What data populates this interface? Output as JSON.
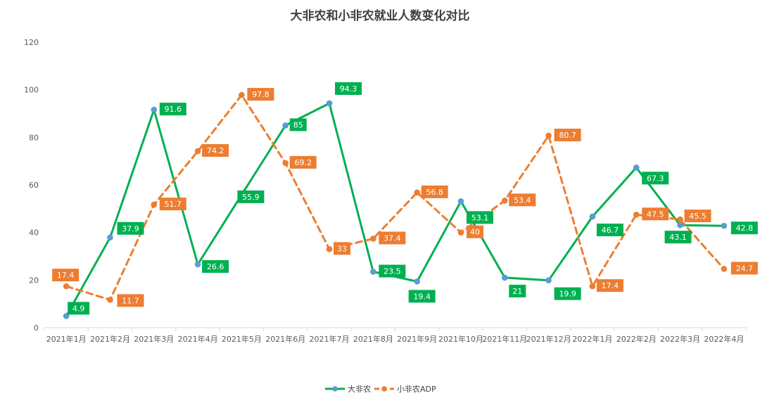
{
  "chart_data": {
    "type": "line",
    "title": "大非农和小非农就业人数变化对比",
    "xlabel": "",
    "ylabel": "",
    "categories": [
      "2021年1月",
      "2021年2月",
      "2021年3月",
      "2021年4月",
      "2021年5月",
      "2021年6月",
      "2021年7月",
      "2021年8月",
      "2021年9月",
      "2021年10月",
      "2021年11月",
      "2021年12月",
      "2022年1月",
      "2022年2月",
      "2022年3月",
      "2022年4月"
    ],
    "ylim": [
      0,
      120
    ],
    "yticks": [
      "0",
      "20",
      "40",
      "60",
      "80",
      "100",
      "120"
    ],
    "grid": false,
    "legend_position": "bottom",
    "series": [
      {
        "name": "大非农",
        "color": "#00b050",
        "marker_color": "#5b9bd5",
        "line_style": "solid",
        "values": [
          4.9,
          37.9,
          91.6,
          26.6,
          55.9,
          85,
          94.3,
          23.5,
          19.4,
          53.1,
          21,
          19.9,
          46.7,
          67.3,
          43.1,
          42.8
        ],
        "labels": [
          "4.9",
          "37.9",
          "91.6",
          "26.6",
          "55.9",
          "85",
          "94.3",
          "23.5",
          "19.4",
          "53.1",
          "21",
          "19.9",
          "46.7",
          "67.3",
          "43.1",
          "42.8"
        ]
      },
      {
        "name": "小非农ADP",
        "color": "#ed7d31",
        "marker_color": "#ed7d31",
        "line_style": "dashed",
        "values": [
          17.4,
          11.7,
          51.7,
          74.2,
          97.8,
          69.2,
          33,
          37.4,
          56.8,
          40,
          53.4,
          80.7,
          17.4,
          47.5,
          45.5,
          24.7
        ],
        "labels": [
          "17.4",
          "11.7",
          "51.7",
          "74.2",
          "97.8",
          "69.2",
          "33",
          "37.4",
          "56.8",
          "40",
          "53.4",
          "80.7",
          "17.4",
          "47.5",
          "45.5",
          "24.7"
        ]
      }
    ]
  }
}
